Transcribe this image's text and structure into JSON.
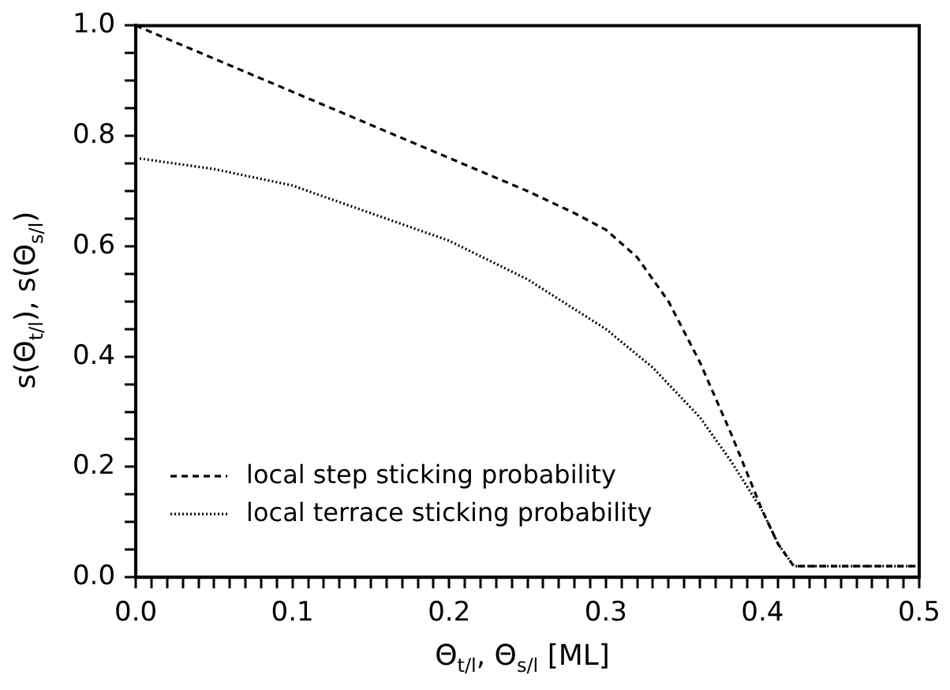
{
  "chart_data": {
    "type": "line",
    "xlabel": "Θ$_{t/l}$, Θ$_{s/l}$ [ML]",
    "ylabel": "s(Θ$_{t/l}$), s(Θ$_{s/l}$)",
    "xlim": [
      0,
      0.5
    ],
    "ylim": [
      0,
      1
    ],
    "xticks": [
      {
        "value": 0,
        "label": "0.0"
      },
      {
        "value": 0.01,
        "label": null
      },
      {
        "value": 0.02,
        "label": null
      },
      {
        "value": 0.03,
        "label": null
      },
      {
        "value": 0.04,
        "label": null
      },
      {
        "value": 0.05,
        "label": null
      },
      {
        "value": 0.06,
        "label": null
      },
      {
        "value": 0.07,
        "label": null
      },
      {
        "value": 0.08,
        "label": null
      },
      {
        "value": 0.09,
        "label": null
      },
      {
        "value": 0.1,
        "label": "0.1"
      },
      {
        "value": 0.11,
        "label": null
      },
      {
        "value": 0.12,
        "label": null
      },
      {
        "value": 0.13,
        "label": null
      },
      {
        "value": 0.14,
        "label": null
      },
      {
        "value": 0.15,
        "label": null
      },
      {
        "value": 0.16,
        "label": null
      },
      {
        "value": 0.17,
        "label": null
      },
      {
        "value": 0.18,
        "label": null
      },
      {
        "value": 0.19,
        "label": null
      },
      {
        "value": 0.2,
        "label": "0.2"
      },
      {
        "value": 0.21,
        "label": null
      },
      {
        "value": 0.22,
        "label": null
      },
      {
        "value": 0.23,
        "label": null
      },
      {
        "value": 0.24,
        "label": null
      },
      {
        "value": 0.25,
        "label": null
      },
      {
        "value": 0.26,
        "label": null
      },
      {
        "value": 0.27,
        "label": null
      },
      {
        "value": 0.28,
        "label": null
      },
      {
        "value": 0.29,
        "label": null
      },
      {
        "value": 0.3,
        "label": "0.3"
      },
      {
        "value": 0.31,
        "label": null
      },
      {
        "value": 0.32,
        "label": null
      },
      {
        "value": 0.33,
        "label": null
      },
      {
        "value": 0.34,
        "label": null
      },
      {
        "value": 0.35,
        "label": null
      },
      {
        "value": 0.36,
        "label": null
      },
      {
        "value": 0.37,
        "label": null
      },
      {
        "value": 0.38,
        "label": null
      },
      {
        "value": 0.39,
        "label": null
      },
      {
        "value": 0.4,
        "label": "0.4"
      },
      {
        "value": 0.41,
        "label": null
      },
      {
        "value": 0.42,
        "label": null
      },
      {
        "value": 0.43,
        "label": null
      },
      {
        "value": 0.44,
        "label": null
      },
      {
        "value": 0.45,
        "label": null
      },
      {
        "value": 0.46,
        "label": null
      },
      {
        "value": 0.47,
        "label": null
      },
      {
        "value": 0.48,
        "label": null
      },
      {
        "value": 0.49,
        "label": null
      },
      {
        "value": 0.5,
        "label": "0.5"
      }
    ],
    "yticks": [
      {
        "value": 0,
        "label": "0.0"
      },
      {
        "value": 0.05,
        "label": null
      },
      {
        "value": 0.1,
        "label": null
      },
      {
        "value": 0.15,
        "label": null
      },
      {
        "value": 0.2,
        "label": "0.2"
      },
      {
        "value": 0.25,
        "label": null
      },
      {
        "value": 0.3,
        "label": null
      },
      {
        "value": 0.35,
        "label": null
      },
      {
        "value": 0.4,
        "label": "0.4"
      },
      {
        "value": 0.45,
        "label": null
      },
      {
        "value": 0.5,
        "label": null
      },
      {
        "value": 0.55,
        "label": null
      },
      {
        "value": 0.6,
        "label": "0.6"
      },
      {
        "value": 0.65,
        "label": null
      },
      {
        "value": 0.7,
        "label": null
      },
      {
        "value": 0.75,
        "label": null
      },
      {
        "value": 0.8,
        "label": "0.8"
      },
      {
        "value": 0.85,
        "label": null
      },
      {
        "value": 0.9,
        "label": null
      },
      {
        "value": 0.95,
        "label": null
      },
      {
        "value": 1,
        "label": "1.0"
      }
    ],
    "grid": false,
    "legend": "bottom left",
    "marker": "none",
    "series": [
      {
        "name": "local step sticking probability",
        "color": "#000000",
        "line_style": "dashed",
        "x": [
          0,
          0.05,
          0.1,
          0.15,
          0.2,
          0.25,
          0.28,
          0.3,
          0.32,
          0.34,
          0.36,
          0.38,
          0.4,
          0.41,
          0.42,
          0.5
        ],
        "values": [
          1.0,
          0.94,
          0.88,
          0.82,
          0.76,
          0.7,
          0.66,
          0.63,
          0.58,
          0.5,
          0.39,
          0.26,
          0.12,
          0.06,
          0.02,
          0.02
        ]
      },
      {
        "name": "local terrace sticking probability",
        "color": "#000000",
        "line_style": "dotted",
        "x": [
          0,
          0.05,
          0.1,
          0.15,
          0.2,
          0.25,
          0.3,
          0.33,
          0.36,
          0.38,
          0.4,
          0.41,
          0.42,
          0.5
        ],
        "values": [
          0.76,
          0.74,
          0.71,
          0.66,
          0.61,
          0.54,
          0.45,
          0.38,
          0.29,
          0.21,
          0.12,
          0.06,
          0.02,
          0.02
        ]
      }
    ]
  }
}
